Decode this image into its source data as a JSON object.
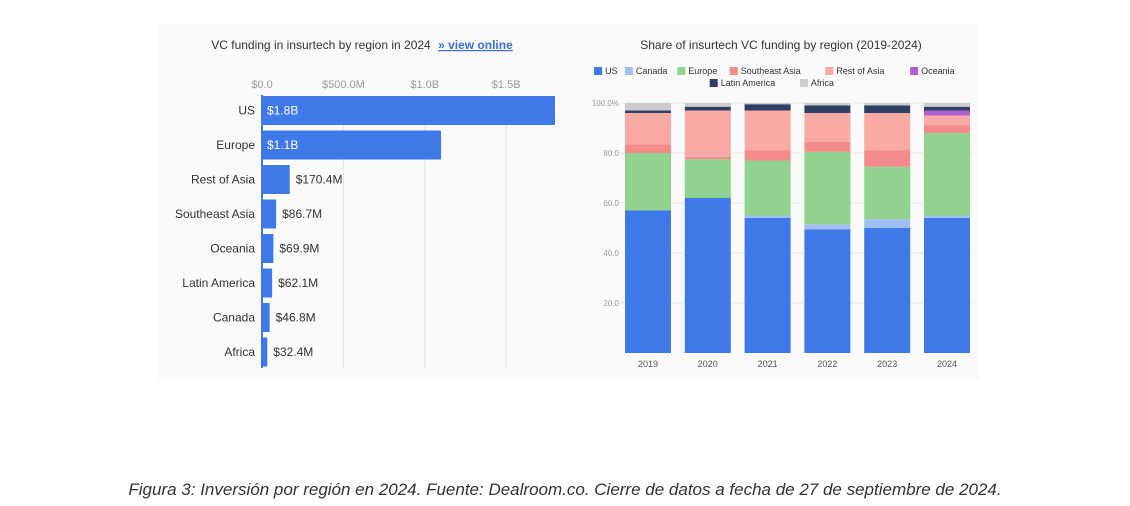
{
  "chart_data": [
    {
      "type": "bar",
      "orientation": "horizontal",
      "title": "VC funding in insurtech by region in 2024",
      "title_link": "» view online",
      "categories": [
        "US",
        "Europe",
        "Rest of Asia",
        "Southeast Asia",
        "Oceania",
        "Latin America",
        "Canada",
        "Africa"
      ],
      "values": [
        1800,
        1100,
        170.4,
        86.7,
        69.9,
        62.1,
        46.8,
        32.4
      ],
      "value_labels": [
        "$1.8B",
        "$1.1B",
        "$170.4M",
        "$86.7M",
        "$69.9M",
        "$62.1M",
        "$46.8M",
        "$32.4M"
      ],
      "value_unit": "$M",
      "xticks": [
        0,
        500,
        1000,
        1500
      ],
      "xtick_labels": [
        "$0.0",
        "$500.0M",
        "$1.0B",
        "$1.5B"
      ],
      "xlim": [
        0,
        1800
      ],
      "grid": true,
      "color": "#3f79e8"
    },
    {
      "type": "bar",
      "stacked": true,
      "title": "Share of insurtech VC funding by region (2019-2024)",
      "categories": [
        "2019",
        "2020",
        "2021",
        "2022",
        "2023",
        "2024"
      ],
      "ylim": [
        0,
        100
      ],
      "yticks": [
        20,
        40,
        60,
        80,
        100
      ],
      "ytick_labels": [
        "20.0",
        "40.0",
        "60.0",
        "80.0",
        "100.0%"
      ],
      "legend_position": "top",
      "series": [
        {
          "name": "US",
          "color": "#3f79e8",
          "values": [
            57,
            62,
            54,
            49.5,
            50,
            54
          ]
        },
        {
          "name": "Canada",
          "color": "#9fbff0",
          "values": [
            0,
            0,
            1,
            2,
            3.5,
            1
          ]
        },
        {
          "name": "Europe",
          "color": "#8fd38f",
          "values": [
            23,
            15.5,
            22,
            29,
            21,
            33
          ]
        },
        {
          "name": "Southeast Asia",
          "color": "#f38b8b",
          "values": [
            3.5,
            1,
            4,
            4,
            6.5,
            3
          ]
        },
        {
          "name": "Rest of Asia",
          "color": "#f9aaa6",
          "values": [
            12.5,
            18.5,
            16,
            11.5,
            15,
            4
          ]
        },
        {
          "name": "Oceania",
          "color": "#b060d0",
          "values": [
            0,
            0,
            0,
            0,
            0,
            2
          ]
        },
        {
          "name": "Latin America",
          "color": "#2f3e63",
          "values": [
            1,
            1.5,
            2.5,
            3,
            3,
            1.5
          ]
        },
        {
          "name": "Africa",
          "color": "#cccccc",
          "values": [
            3,
            1.5,
            0.5,
            1,
            1,
            1.5
          ]
        }
      ]
    }
  ],
  "caption": "Figura 3: Inversión por región en 2024. Fuente: Dealroom.co. Cierre de datos a fecha de 27 de septiembre de 2024."
}
